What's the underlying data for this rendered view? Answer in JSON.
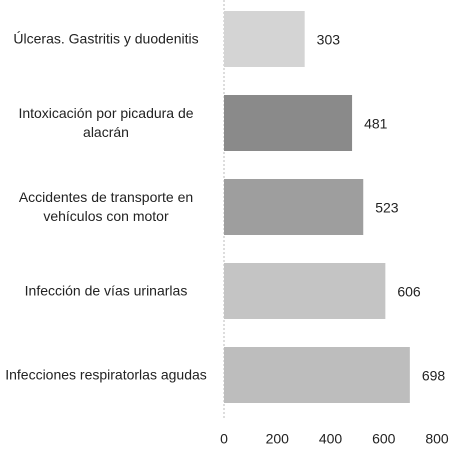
{
  "chart_data": {
    "type": "bar",
    "orientation": "horizontal",
    "categories": [
      "Úlceras. Gastritis y duodenitis",
      "Intoxicación por picadura de alacrán",
      "Accidentes de transporte en vehículos con motor",
      "Infección de vías urinarlas",
      "Infecciones respiratorlas agudas"
    ],
    "values": [
      303,
      481,
      523,
      606,
      698
    ],
    "colors": [
      "#d4d4d4",
      "#8a8a8a",
      "#9e9e9e",
      "#c4c4c4",
      "#bdbdbd"
    ],
    "xlim": [
      0,
      800
    ],
    "xticks": [
      0,
      200,
      400,
      600,
      800
    ],
    "grid": false
  }
}
